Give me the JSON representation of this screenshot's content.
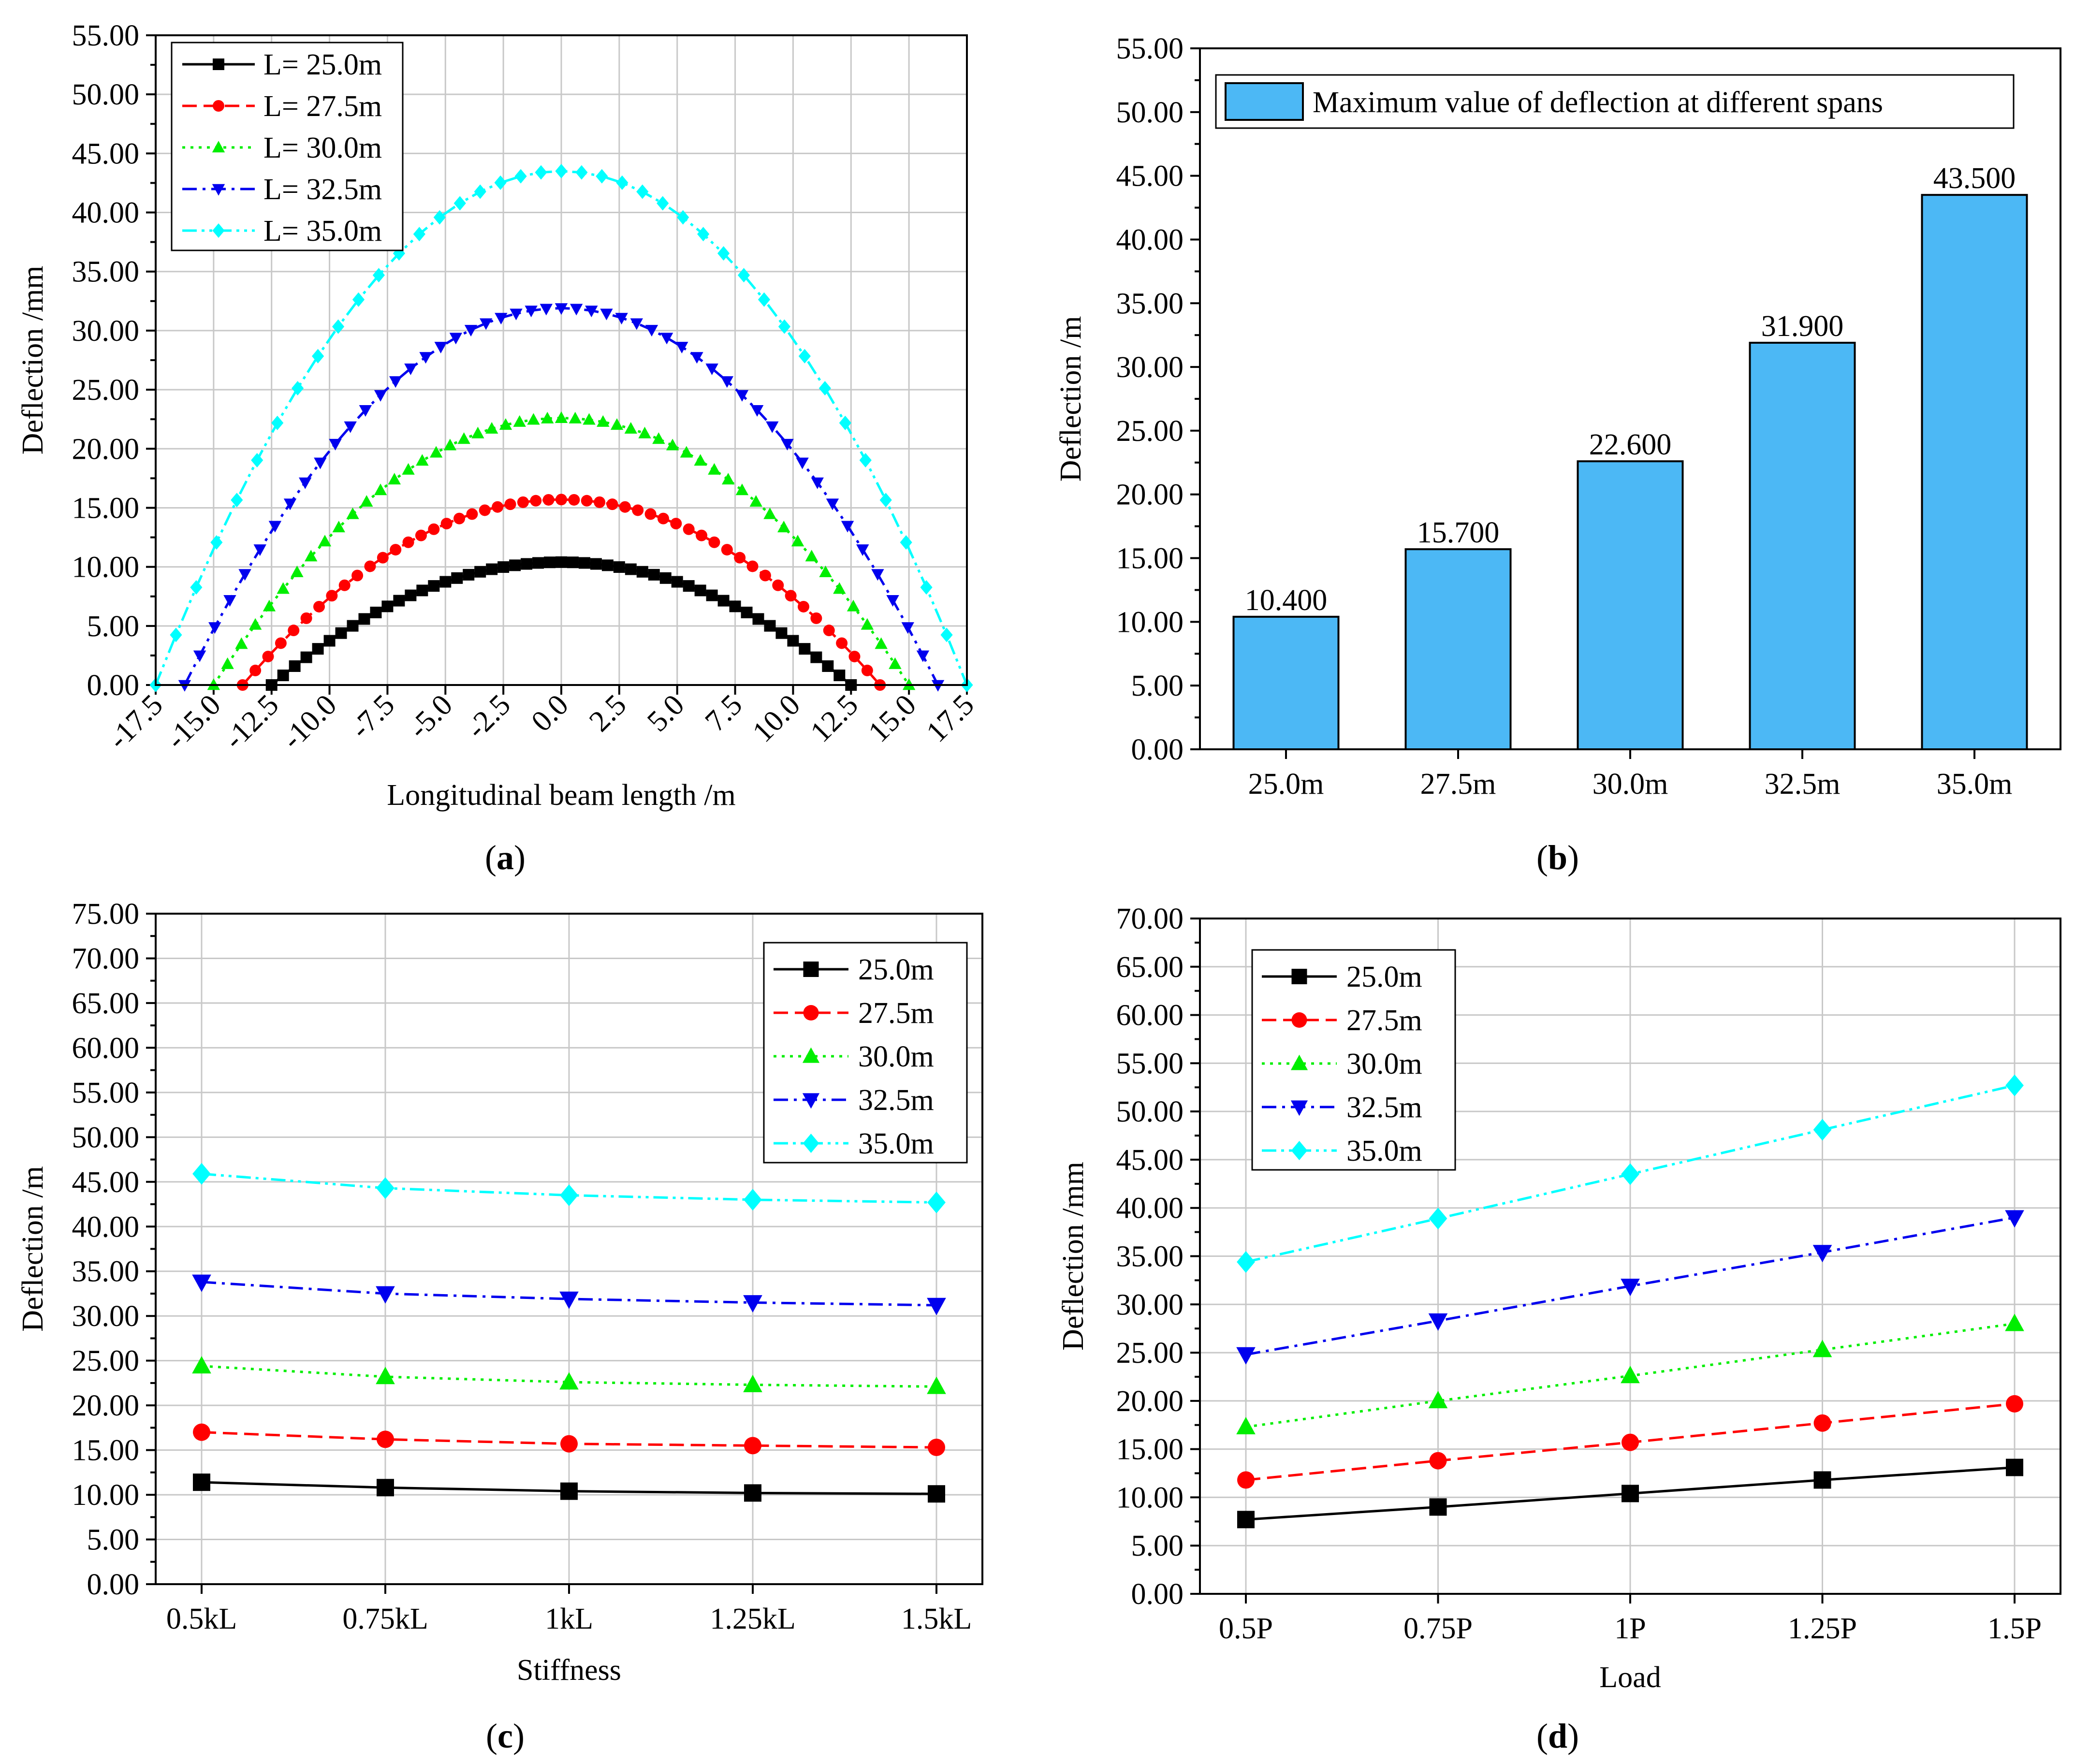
{
  "colors": {
    "black": "#000000",
    "red": "#ff0000",
    "green": "#00ee00",
    "blue": "#0000ee",
    "cyan": "#00ffff",
    "bar_fill": "#4cb8f5",
    "grid": "#c8c8c8"
  },
  "chart_data": [
    {
      "id": "a",
      "type": "line",
      "panel_label": "a",
      "xlabel": "Longitudinal beam length /m",
      "ylabel": "Deflection /mm",
      "xlim": [
        -17.5,
        17.5
      ],
      "ylim": [
        0,
        55
      ],
      "xticks": [
        -17.5,
        -15,
        -12.5,
        -10,
        -7.5,
        -5,
        -2.5,
        0,
        2.5,
        5,
        7.5,
        10,
        12.5,
        15,
        17.5
      ],
      "yticks": [
        0,
        5,
        10,
        15,
        20,
        25,
        30,
        35,
        40,
        45,
        50,
        55
      ],
      "grid": true,
      "legend_position": "top-left",
      "curve": "parabolic",
      "series": [
        {
          "name": "L= 25.0m",
          "color": "#000000",
          "marker": "square",
          "dash": "solid",
          "peak": 10.4,
          "half_span": 12.5,
          "x_step": 0.5
        },
        {
          "name": "L= 27.5m",
          "color": "#ff0000",
          "marker": "circle",
          "dash": "dash",
          "peak": 15.7,
          "half_span": 13.75,
          "x_step": 0.55
        },
        {
          "name": "L= 30.0m",
          "color": "#00ee00",
          "marker": "triangle-up",
          "dash": "dot",
          "peak": 22.6,
          "half_span": 15.0,
          "x_step": 0.6
        },
        {
          "name": "L= 32.5m",
          "color": "#0000ee",
          "marker": "triangle-down",
          "dash": "dashdot",
          "peak": 31.9,
          "half_span": 16.25,
          "x_step": 0.65
        },
        {
          "name": "L= 35.0m",
          "color": "#00ffff",
          "marker": "diamond",
          "dash": "dashdotdot",
          "peak": 43.5,
          "half_span": 17.5,
          "x_step": 0.875
        }
      ]
    },
    {
      "id": "b",
      "type": "bar",
      "panel_label": "b",
      "xlabel": "",
      "ylabel": "Deflection /m",
      "ylim": [
        0,
        55
      ],
      "yticks": [
        0,
        5,
        10,
        15,
        20,
        25,
        30,
        35,
        40,
        45,
        50,
        55
      ],
      "grid": false,
      "legend_position": "top",
      "series_name": "Maximum value of deflection at different spans",
      "categories": [
        "25.0m",
        "27.5m",
        "30.0m",
        "32.5m",
        "35.0m"
      ],
      "values": [
        10.4,
        15.7,
        22.6,
        31.9,
        43.5
      ],
      "value_labels": [
        "10.400",
        "15.700",
        "22.600",
        "31.900",
        "43.500"
      ],
      "color": "#4cb8f5"
    },
    {
      "id": "c",
      "type": "line",
      "panel_label": "c",
      "xlabel": "Stiffness",
      "ylabel": "Deflection /m",
      "ylim": [
        0,
        75
      ],
      "yticks": [
        0,
        5,
        10,
        15,
        20,
        25,
        30,
        35,
        40,
        45,
        50,
        55,
        60,
        65,
        70,
        75
      ],
      "grid": true,
      "legend_position": "top-right",
      "categories": [
        "0.5kL",
        "0.75kL",
        "1kL",
        "1.25kL",
        "1.5kL"
      ],
      "series": [
        {
          "name": "25.0m",
          "color": "#000000",
          "marker": "square",
          "dash": "solid",
          "values": [
            11.4,
            10.8,
            10.4,
            10.2,
            10.1
          ]
        },
        {
          "name": "27.5m",
          "color": "#ff0000",
          "marker": "circle",
          "dash": "dash",
          "values": [
            17.0,
            16.2,
            15.7,
            15.5,
            15.3
          ]
        },
        {
          "name": "30.0m",
          "color": "#00ee00",
          "marker": "triangle-up",
          "dash": "dot",
          "values": [
            24.4,
            23.2,
            22.6,
            22.3,
            22.1
          ]
        },
        {
          "name": "32.5m",
          "color": "#0000ee",
          "marker": "triangle-down",
          "dash": "dashdot",
          "values": [
            33.8,
            32.5,
            31.9,
            31.5,
            31.2
          ]
        },
        {
          "name": "35.0m",
          "color": "#00ffff",
          "marker": "diamond",
          "dash": "dashdotdot",
          "values": [
            45.9,
            44.3,
            43.5,
            43.0,
            42.7
          ]
        }
      ]
    },
    {
      "id": "d",
      "type": "line",
      "panel_label": "d",
      "xlabel": "Load",
      "ylabel": "Deflection /mm",
      "ylim": [
        0,
        70
      ],
      "yticks": [
        0,
        5,
        10,
        15,
        20,
        25,
        30,
        35,
        40,
        45,
        50,
        55,
        60,
        65,
        70
      ],
      "grid": true,
      "legend_position": "top-left",
      "categories": [
        "0.5P",
        "0.75P",
        "1P",
        "1.25P",
        "1.5P"
      ],
      "series": [
        {
          "name": "25.0m",
          "color": "#000000",
          "marker": "square",
          "dash": "solid",
          "values": [
            7.7,
            9.0,
            10.4,
            11.8,
            13.1
          ]
        },
        {
          "name": "27.5m",
          "color": "#ff0000",
          "marker": "circle",
          "dash": "dash",
          "values": [
            11.8,
            13.8,
            15.7,
            17.7,
            19.7
          ]
        },
        {
          "name": "30.0m",
          "color": "#00ee00",
          "marker": "triangle-up",
          "dash": "dot",
          "values": [
            17.3,
            20.0,
            22.6,
            25.3,
            28.0
          ]
        },
        {
          "name": "32.5m",
          "color": "#0000ee",
          "marker": "triangle-down",
          "dash": "dashdot",
          "values": [
            24.8,
            28.3,
            31.9,
            35.4,
            39.0
          ]
        },
        {
          "name": "35.0m",
          "color": "#00ffff",
          "marker": "diamond",
          "dash": "dashdotdot",
          "values": [
            34.4,
            38.9,
            43.5,
            48.1,
            52.7
          ]
        }
      ]
    }
  ]
}
